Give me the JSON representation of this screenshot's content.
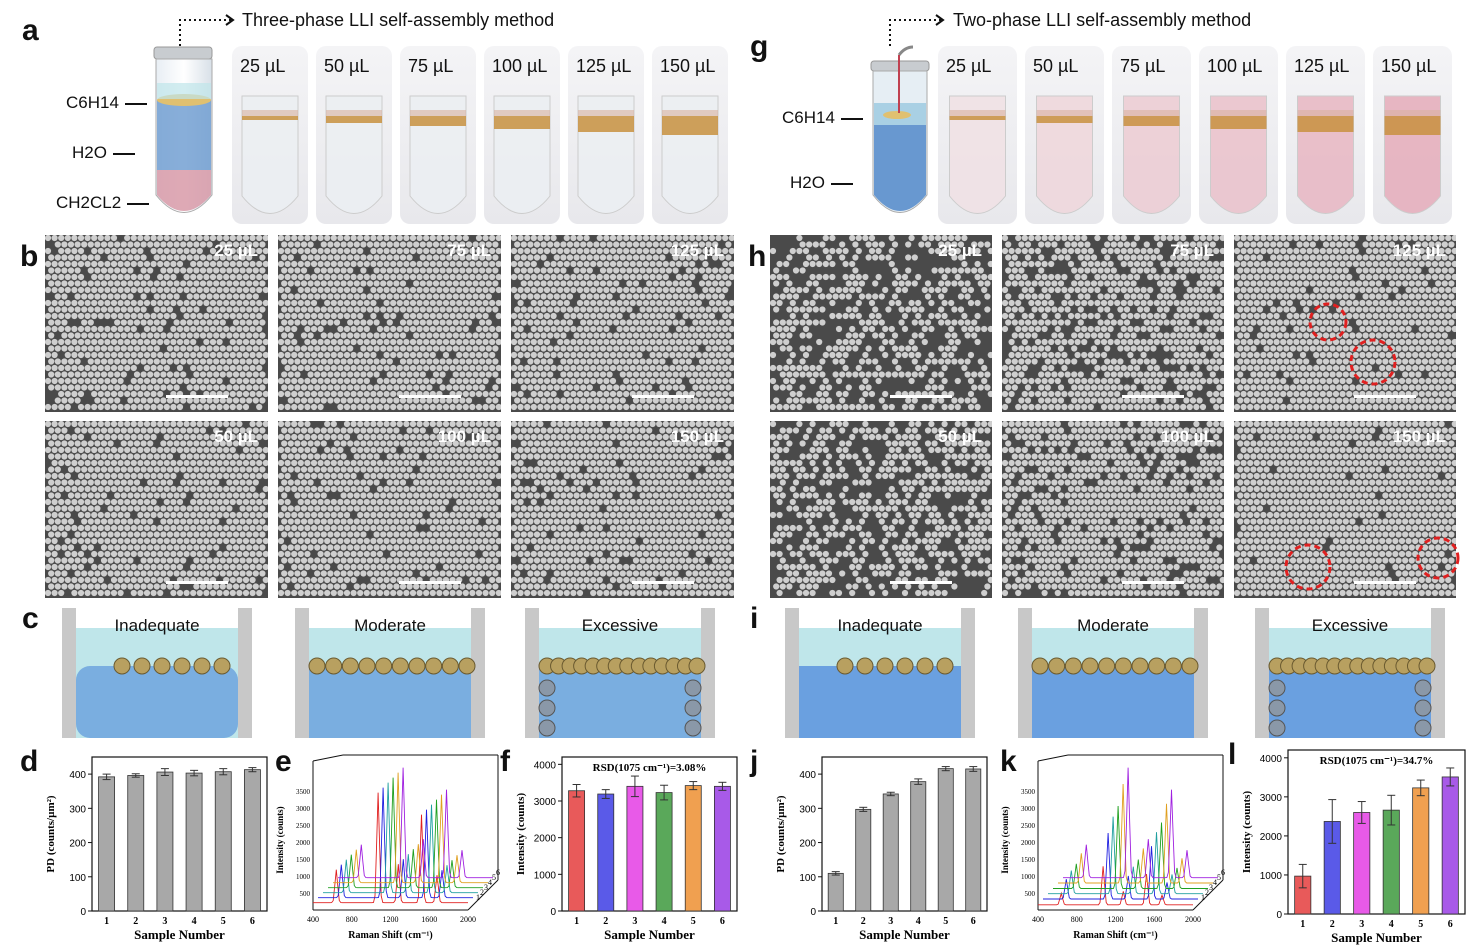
{
  "panels": {
    "a": "a",
    "b": "b",
    "c": "c",
    "d": "d",
    "e": "e",
    "f": "f",
    "g": "g",
    "h": "h",
    "i": "i",
    "j": "j",
    "k": "k",
    "l": "l"
  },
  "left": {
    "method_title": "Three-phase LLI self-assembly method",
    "phases": {
      "hexane": "C6H14",
      "water": "H2O",
      "dcm": "CH2CL2"
    },
    "volumes": [
      "25 µL",
      "50 µL",
      "75 µL",
      "100 µL",
      "125 µL",
      "150 µL"
    ],
    "sem_labels": [
      "25 µL",
      "75 µL",
      "125 µL",
      "50 µL",
      "100 µL",
      "150 µL"
    ],
    "diagram_labels": [
      "Inadequate",
      "Moderate",
      "Excessive"
    ]
  },
  "right": {
    "method_title": "Two-phase LLI self-assembly method",
    "phases": {
      "hexane": "C6H14",
      "water": "H2O"
    },
    "volumes": [
      "25 µL",
      "50 µL",
      "75 µL",
      "100 µL",
      "125 µL",
      "150 µL"
    ],
    "sem_labels": [
      "25 µL",
      "75 µL",
      "125 µL",
      "50 µL",
      "100 µL",
      "150 µL"
    ],
    "diagram_labels": [
      "Inadequate",
      "Moderate",
      "Excessive"
    ]
  },
  "chart_data": [
    {
      "id": "d",
      "type": "bar",
      "categories": [
        "1",
        "2",
        "3",
        "4",
        "5",
        "6"
      ],
      "values": [
        392,
        396,
        406,
        403,
        407,
        413
      ],
      "errors": [
        8,
        5,
        10,
        8,
        9,
        6
      ],
      "ylabel": "PD (counts/µm²)",
      "xlabel": "Sample Number",
      "ylim": [
        0,
        450
      ],
      "yticks": [
        0,
        100,
        200,
        300,
        400
      ],
      "color": "#a8a8a8"
    },
    {
      "id": "e",
      "type": "line",
      "title": "",
      "xlabel": "Raman Shift (cm⁻¹)",
      "ylabel": "Intensity (counts)",
      "xticks": [
        "400",
        "800",
        "1200",
        "1600",
        "2000"
      ],
      "yticks": [
        "500",
        "1000",
        "1500",
        "2000",
        "2500",
        "3000",
        "3500"
      ],
      "series_depth": [
        "1",
        "2",
        "3",
        "4",
        "5",
        "6"
      ]
    },
    {
      "id": "f",
      "type": "bar",
      "categories": [
        "1",
        "2",
        "3",
        "4",
        "5",
        "6"
      ],
      "values": [
        3280,
        3190,
        3400,
        3230,
        3420,
        3400
      ],
      "errors": [
        170,
        120,
        280,
        200,
        110,
        110
      ],
      "annotation": "RSD(1075 cm⁻¹)=3.08%",
      "ylabel": "Intensity (counts)",
      "xlabel": "Sample Number",
      "ylim": [
        0,
        4200
      ],
      "yticks": [
        0,
        1000,
        2000,
        3000,
        4000
      ],
      "colors": [
        "#e85a5a",
        "#5a5ae8",
        "#e85ae8",
        "#5aa85a",
        "#f0a050",
        "#a85ae8"
      ]
    },
    {
      "id": "j",
      "type": "bar",
      "categories": [
        "1",
        "2",
        "3",
        "4",
        "5",
        "6"
      ],
      "values": [
        110,
        297,
        342,
        378,
        416,
        415
      ],
      "errors": [
        5,
        6,
        5,
        8,
        6,
        7
      ],
      "ylabel": "PD (counts/µm²)",
      "xlabel": "Sample Number",
      "ylim": [
        0,
        450
      ],
      "yticks": [
        0,
        100,
        200,
        300,
        400
      ],
      "color": "#a8a8a8"
    },
    {
      "id": "k",
      "type": "line",
      "xlabel": "Raman Shift (cm⁻¹)",
      "ylabel": "Intensity (counts)",
      "xticks": [
        "400",
        "800",
        "1200",
        "1600",
        "2000"
      ],
      "yticks": [
        "500",
        "1000",
        "1500",
        "2000",
        "2500",
        "3000",
        "3500"
      ],
      "series_depth": [
        "1",
        "2",
        "3",
        "4",
        "5",
        "6"
      ]
    },
    {
      "id": "l",
      "type": "bar",
      "categories": [
        "1",
        "2",
        "3",
        "4",
        "5",
        "6"
      ],
      "values": [
        970,
        2370,
        2600,
        2660,
        3230,
        3510
      ],
      "errors": [
        300,
        560,
        280,
        380,
        200,
        230
      ],
      "annotation": "RSD(1075 cm⁻¹)=34.7%",
      "ylabel": "Intensity (counts)",
      "xlabel": "Sample Number",
      "ylim": [
        0,
        4200
      ],
      "yticks": [
        0,
        1000,
        2000,
        3000,
        4000
      ],
      "colors": [
        "#e85a5a",
        "#5a5ae8",
        "#e85ae8",
        "#5aa85a",
        "#f0a050",
        "#a85ae8"
      ]
    }
  ]
}
